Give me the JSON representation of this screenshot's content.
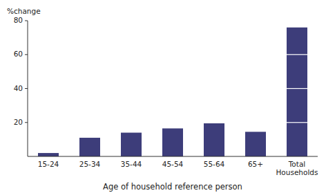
{
  "chart_data": {
    "type": "bar",
    "categories": [
      "15-24",
      "25-34",
      "35-44",
      "45-54",
      "55-64",
      "65+",
      "Total\nHouseholds"
    ],
    "values": [
      2.0,
      11.0,
      14.0,
      16.5,
      19.5,
      14.5,
      76.0
    ],
    "color": "#3d3d7a",
    "segment_lines": [
      20,
      40,
      60
    ],
    "ylim": [
      0,
      80
    ],
    "yticks": [
      20,
      40,
      60,
      80
    ],
    "ylabel": "%change",
    "xlabel": "Age of household reference person",
    "grid": false
  }
}
